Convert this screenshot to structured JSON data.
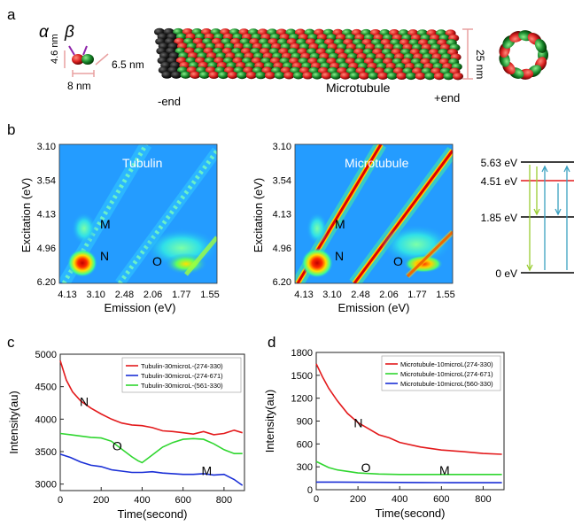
{
  "panel_a": {
    "label": "a",
    "alpha": "α",
    "beta": "β",
    "dim_height": "4.6 nm",
    "dim_depth": "6.5 nm",
    "dim_width": "8 nm",
    "minus_end": "-end",
    "plus_end": "+end",
    "microtubule_label": "Microtubule",
    "diameter": "25 nm",
    "colors": {
      "alpha": "#e31a1c",
      "beta": "#1a8a2e",
      "tubule_dark": "#111111"
    }
  },
  "panel_b": {
    "label": "b",
    "left_title": "Tubulin",
    "right_title": "Microtubule",
    "ylabel": "Excitation (eV)",
    "xlabel": "Emission (eV)",
    "yticks": [
      "3.10",
      "3.54",
      "4.13",
      "4.96",
      "6.20"
    ],
    "xticks": [
      "4.13",
      "3.10",
      "2.48",
      "2.06",
      "1.77",
      "1.55"
    ],
    "peak_labels": [
      "M",
      "N",
      "O"
    ],
    "energy_levels": [
      "5.63 eV",
      "4.51 eV",
      "1.85 eV",
      "0 eV"
    ]
  },
  "chart_data": [
    {
      "type": "line",
      "panel": "c",
      "xlabel": "Time(second)",
      "ylabel": "Intensity(au)",
      "xlim": [
        0,
        900
      ],
      "ylim": [
        2900,
        5000
      ],
      "xticks": [
        0,
        200,
        400,
        600,
        800
      ],
      "yticks": [
        3000,
        3500,
        4000,
        4500,
        5000
      ],
      "annotations": [
        "N",
        "O",
        "M"
      ],
      "series": [
        {
          "name": "Tubulin-30microL-(274-330)",
          "color": "#e31a1c",
          "x": [
            0,
            30,
            60,
            100,
            150,
            200,
            250,
            300,
            350,
            400,
            450,
            500,
            550,
            600,
            650,
            700,
            750,
            800,
            850,
            890
          ],
          "y": [
            4900,
            4600,
            4420,
            4280,
            4170,
            4080,
            4000,
            3940,
            3910,
            3900,
            3870,
            3820,
            3810,
            3790,
            3770,
            3810,
            3760,
            3780,
            3830,
            3790
          ]
        },
        {
          "name": "Tubulin-30microL-(274-671)",
          "color": "#1a2fd6",
          "x": [
            0,
            50,
            100,
            150,
            200,
            250,
            300,
            350,
            400,
            450,
            500,
            550,
            600,
            650,
            700,
            750,
            800,
            850,
            890
          ],
          "y": [
            3460,
            3410,
            3340,
            3290,
            3270,
            3220,
            3200,
            3180,
            3180,
            3190,
            3170,
            3160,
            3150,
            3150,
            3160,
            3140,
            3150,
            3070,
            2980
          ]
        },
        {
          "name": "Tubulin-30microL-(561-330)",
          "color": "#2fd62f",
          "x": [
            0,
            50,
            100,
            150,
            200,
            250,
            300,
            350,
            380,
            400,
            450,
            500,
            550,
            600,
            650,
            700,
            750,
            800,
            850,
            890
          ],
          "y": [
            3780,
            3760,
            3740,
            3720,
            3710,
            3660,
            3540,
            3420,
            3360,
            3330,
            3450,
            3570,
            3640,
            3690,
            3700,
            3690,
            3620,
            3530,
            3470,
            3470
          ]
        }
      ]
    },
    {
      "type": "line",
      "panel": "d",
      "xlabel": "Time(second)",
      "ylabel": "Intensity(au)",
      "xlim": [
        0,
        900
      ],
      "ylim": [
        0,
        1800
      ],
      "xticks": [
        0,
        200,
        400,
        600,
        800
      ],
      "yticks": [
        0,
        300,
        600,
        900,
        1200,
        1500,
        1800
      ],
      "annotations": [
        "N",
        "O",
        "M"
      ],
      "series": [
        {
          "name": "Microtubule-10microL(274-330)",
          "color": "#e31a1c",
          "x": [
            0,
            30,
            60,
            100,
            150,
            200,
            250,
            300,
            350,
            400,
            500,
            600,
            700,
            800,
            890
          ],
          "y": [
            1650,
            1480,
            1330,
            1170,
            1000,
            880,
            800,
            720,
            680,
            620,
            560,
            520,
            500,
            475,
            465
          ]
        },
        {
          "name": "Microtubule-10microL(274-671)",
          "color": "#2fd62f",
          "x": [
            0,
            30,
            60,
            100,
            150,
            200,
            300,
            400,
            500,
            600,
            700,
            800,
            890
          ],
          "y": [
            370,
            330,
            290,
            260,
            240,
            220,
            205,
            200,
            200,
            200,
            200,
            200,
            200
          ]
        },
        {
          "name": "Microtubule-10microL(560-330)",
          "color": "#1a2fd6",
          "x": [
            0,
            100,
            200,
            300,
            400,
            500,
            600,
            700,
            800,
            890
          ],
          "y": [
            100,
            100,
            98,
            96,
            95,
            94,
            93,
            92,
            92,
            92
          ]
        }
      ]
    }
  ]
}
